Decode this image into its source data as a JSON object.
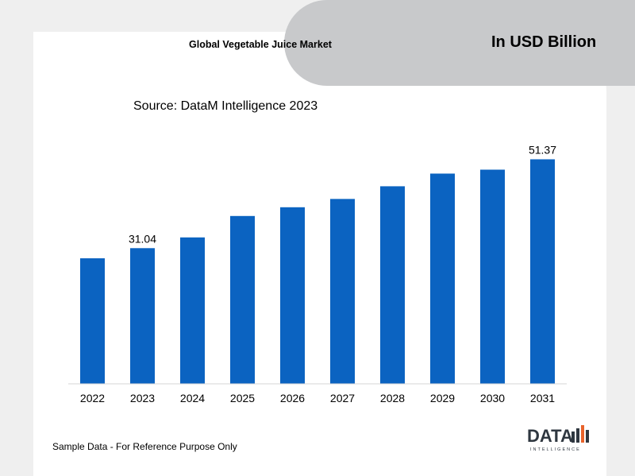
{
  "header": {
    "title": "Global Vegetable Juice Market",
    "unit": "In USD Billion",
    "source": "Source: DataM Intelligence 2023"
  },
  "footer": {
    "note": "Sample Data - For Reference Purpose Only",
    "logo_text": "DATA",
    "logo_subtext": "INTELLIGENCE"
  },
  "colors": {
    "bar": "#0b63c1",
    "background": "#efefef",
    "pill": "#c8c9cb"
  },
  "chart_data": {
    "type": "bar",
    "title": "Global Vegetable Juice Market",
    "xlabel": "",
    "ylabel": "",
    "categories": [
      "2022",
      "2023",
      "2024",
      "2025",
      "2026",
      "2027",
      "2028",
      "2029",
      "2030",
      "2031"
    ],
    "values": [
      28.72,
      31.04,
      33.5,
      38.4,
      40.4,
      42.3,
      45.2,
      48.1,
      49.0,
      51.37
    ],
    "data_labels": {
      "1": "31.04",
      "9": "51.37"
    },
    "ylim": [
      0,
      60
    ],
    "grid": false,
    "legend": "none"
  }
}
